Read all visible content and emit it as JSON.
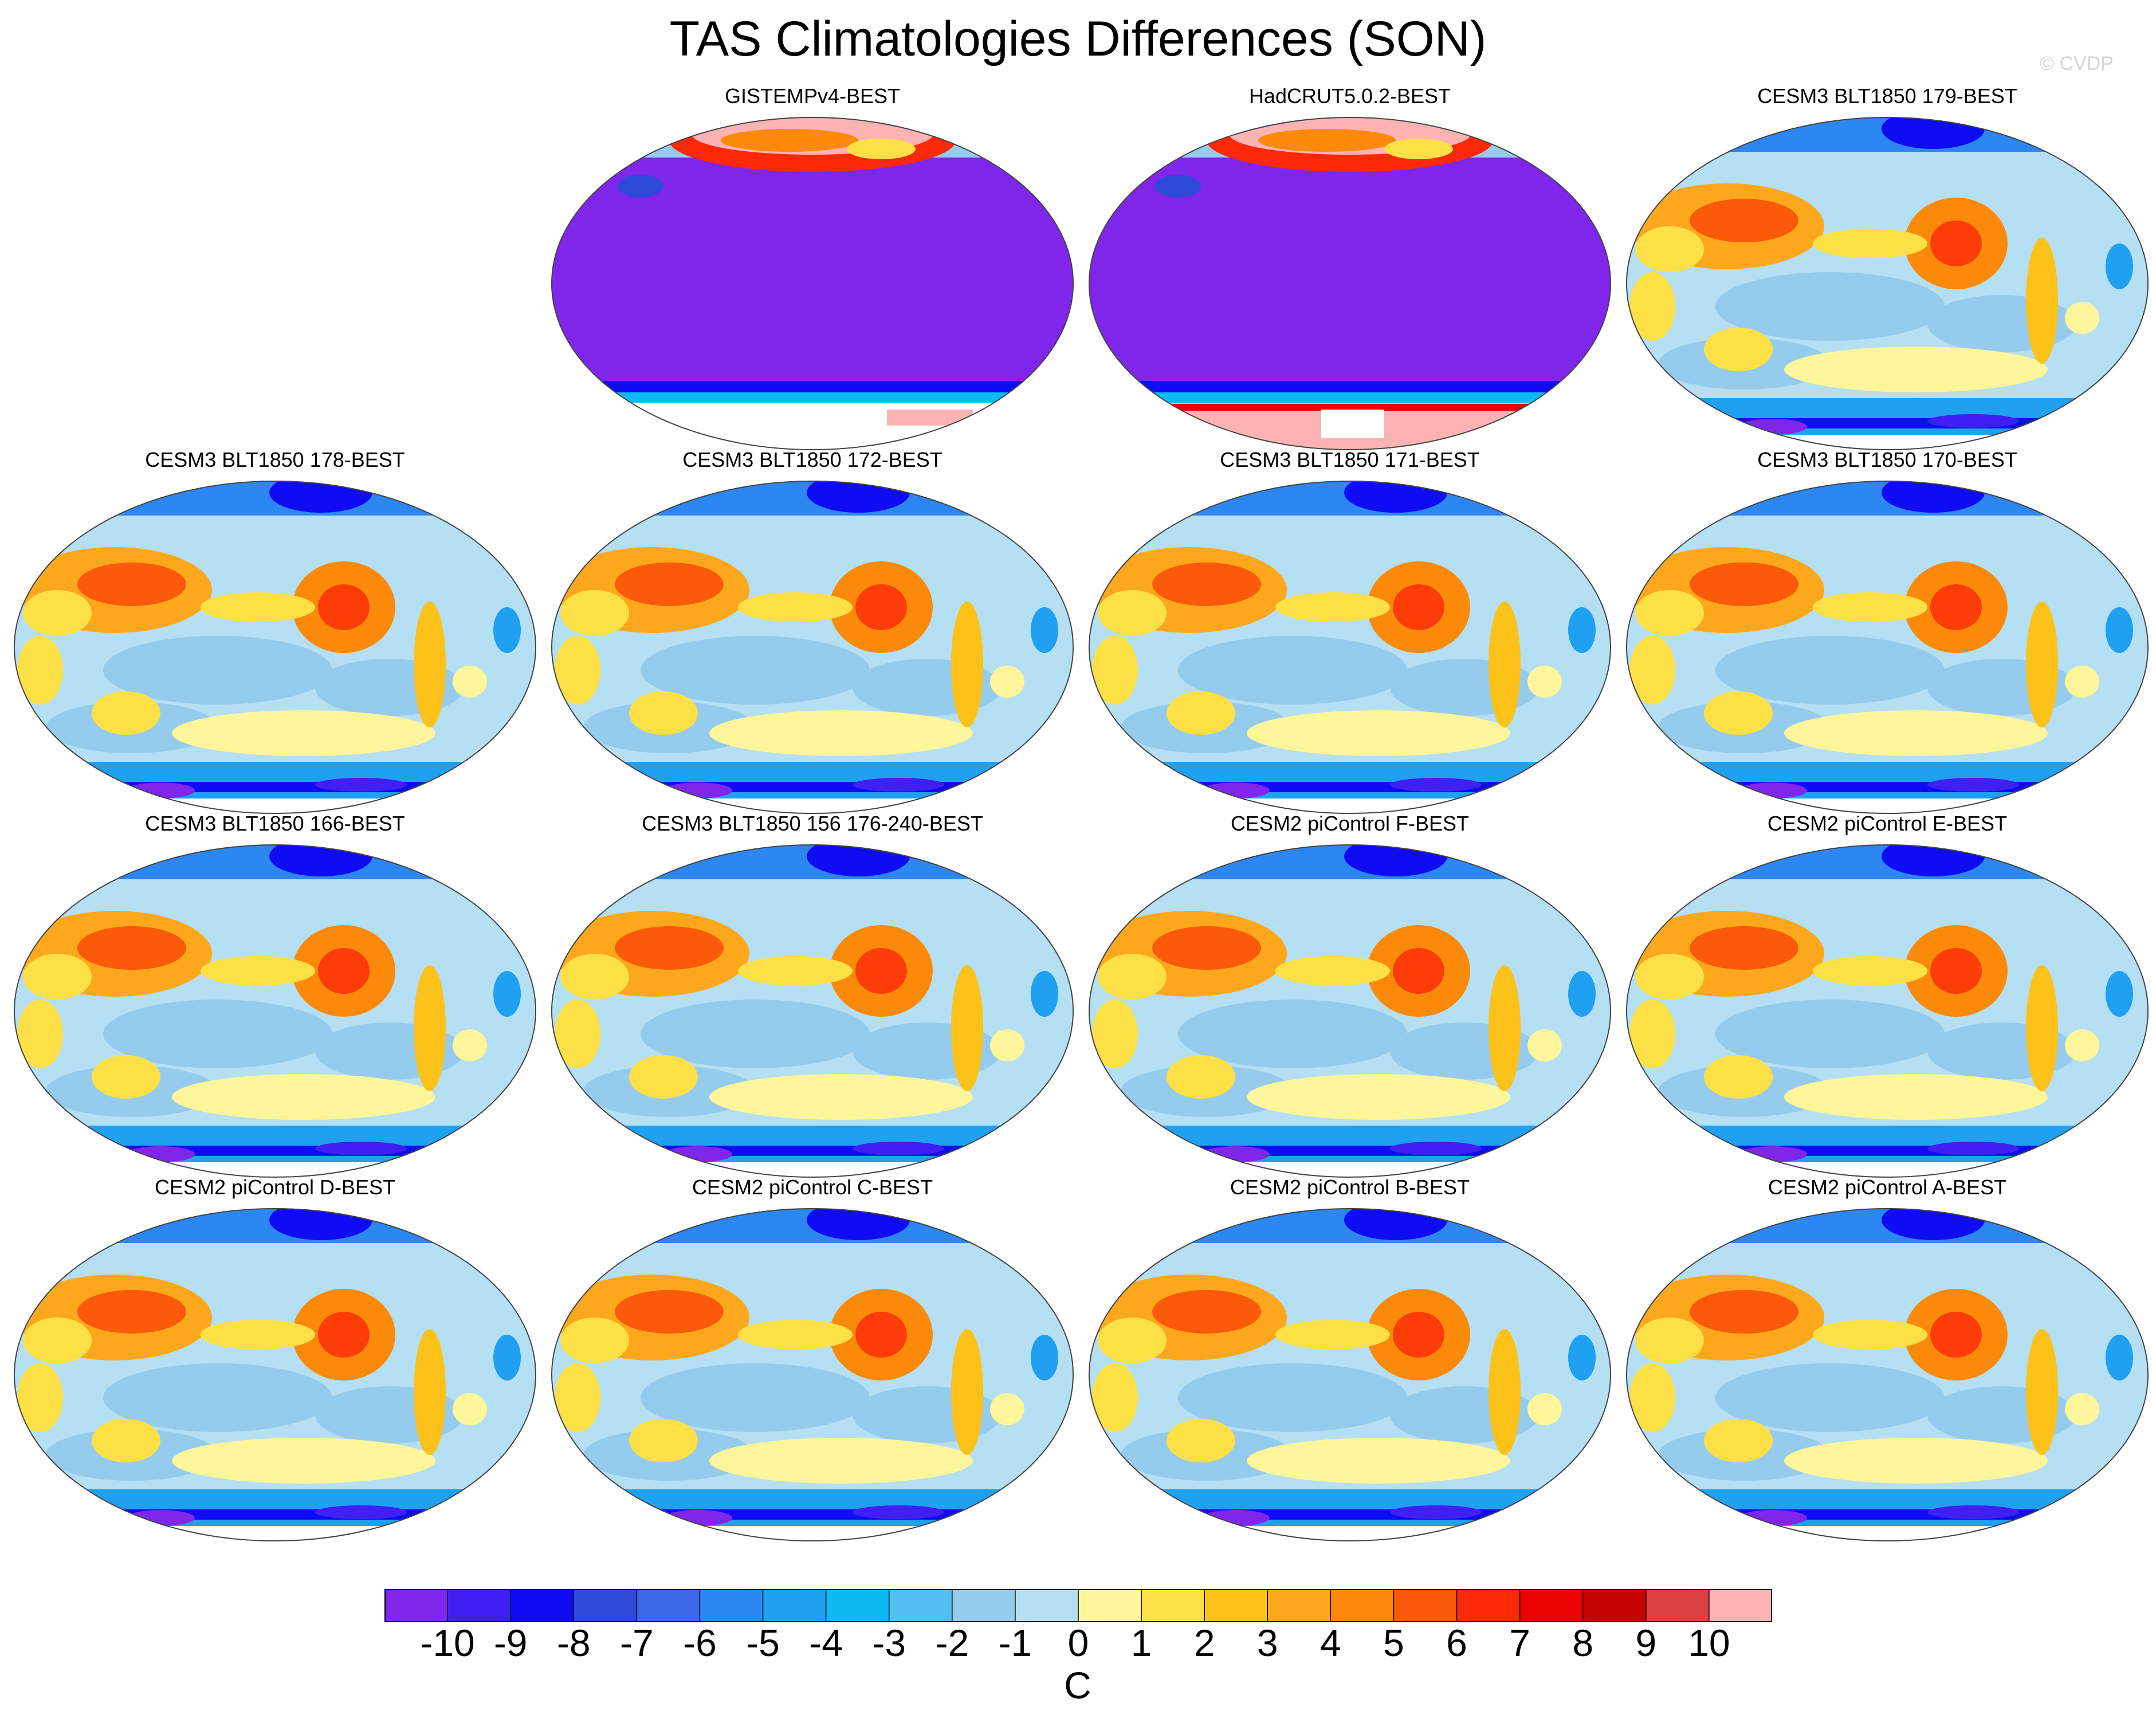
{
  "title": "TAS Climatologies Differences (SON)",
  "copyright": "© CVDP",
  "panels": [
    {
      "title": "GISTEMPv4-BEST",
      "style": "obs"
    },
    {
      "title": "HadCRUT5.0.2-BEST",
      "style": "obs"
    },
    {
      "title": "CESM3 BLT1850 179-BEST",
      "style": "model"
    },
    {
      "title": "CESM3 BLT1850 178-BEST",
      "style": "model"
    },
    {
      "title": "CESM3 BLT1850 172-BEST",
      "style": "model"
    },
    {
      "title": "CESM3 BLT1850 171-BEST",
      "style": "model"
    },
    {
      "title": "CESM3 BLT1850 170-BEST",
      "style": "model"
    },
    {
      "title": "CESM3 BLT1850 166-BEST",
      "style": "model"
    },
    {
      "title": "CESM3 BLT1850 156 176-240-BEST",
      "style": "model"
    },
    {
      "title": "CESM2 piControl F-BEST",
      "style": "model"
    },
    {
      "title": "CESM2 piControl E-BEST",
      "style": "model"
    },
    {
      "title": "CESM2 piControl D-BEST",
      "style": "model"
    },
    {
      "title": "CESM2 piControl C-BEST",
      "style": "model"
    },
    {
      "title": "CESM2 piControl B-BEST",
      "style": "model"
    },
    {
      "title": "CESM2 piControl A-BEST",
      "style": "model"
    }
  ],
  "chart_data": {
    "type": "heatmap",
    "title": "TAS Climatologies Differences (SON)",
    "projection": "global map (Robinson-like)",
    "colorbar": {
      "units": "C",
      "labels": [
        "-10",
        "-9",
        "-8",
        "-7",
        "-6",
        "-5",
        "-4",
        "-3",
        "-2",
        "-1",
        "0",
        "1",
        "2",
        "3",
        "4",
        "5",
        "6",
        "7",
        "8",
        "9",
        "10"
      ],
      "colors": [
        "#8025ea",
        "#3f1ff2",
        "#0f0cf3",
        "#2e4ad8",
        "#3b68e6",
        "#2d87f2",
        "#20a0f0",
        "#0bbbf2",
        "#52bff0",
        "#95ccee",
        "#b5dff3",
        "#fff59a",
        "#fde046",
        "#fcc21a",
        "#fda81c",
        "#fb8a0a",
        "#fb5a09",
        "#fc2906",
        "#e90200",
        "#c50200",
        "#dc4040",
        "#fdb3b4"
      ]
    }
  }
}
